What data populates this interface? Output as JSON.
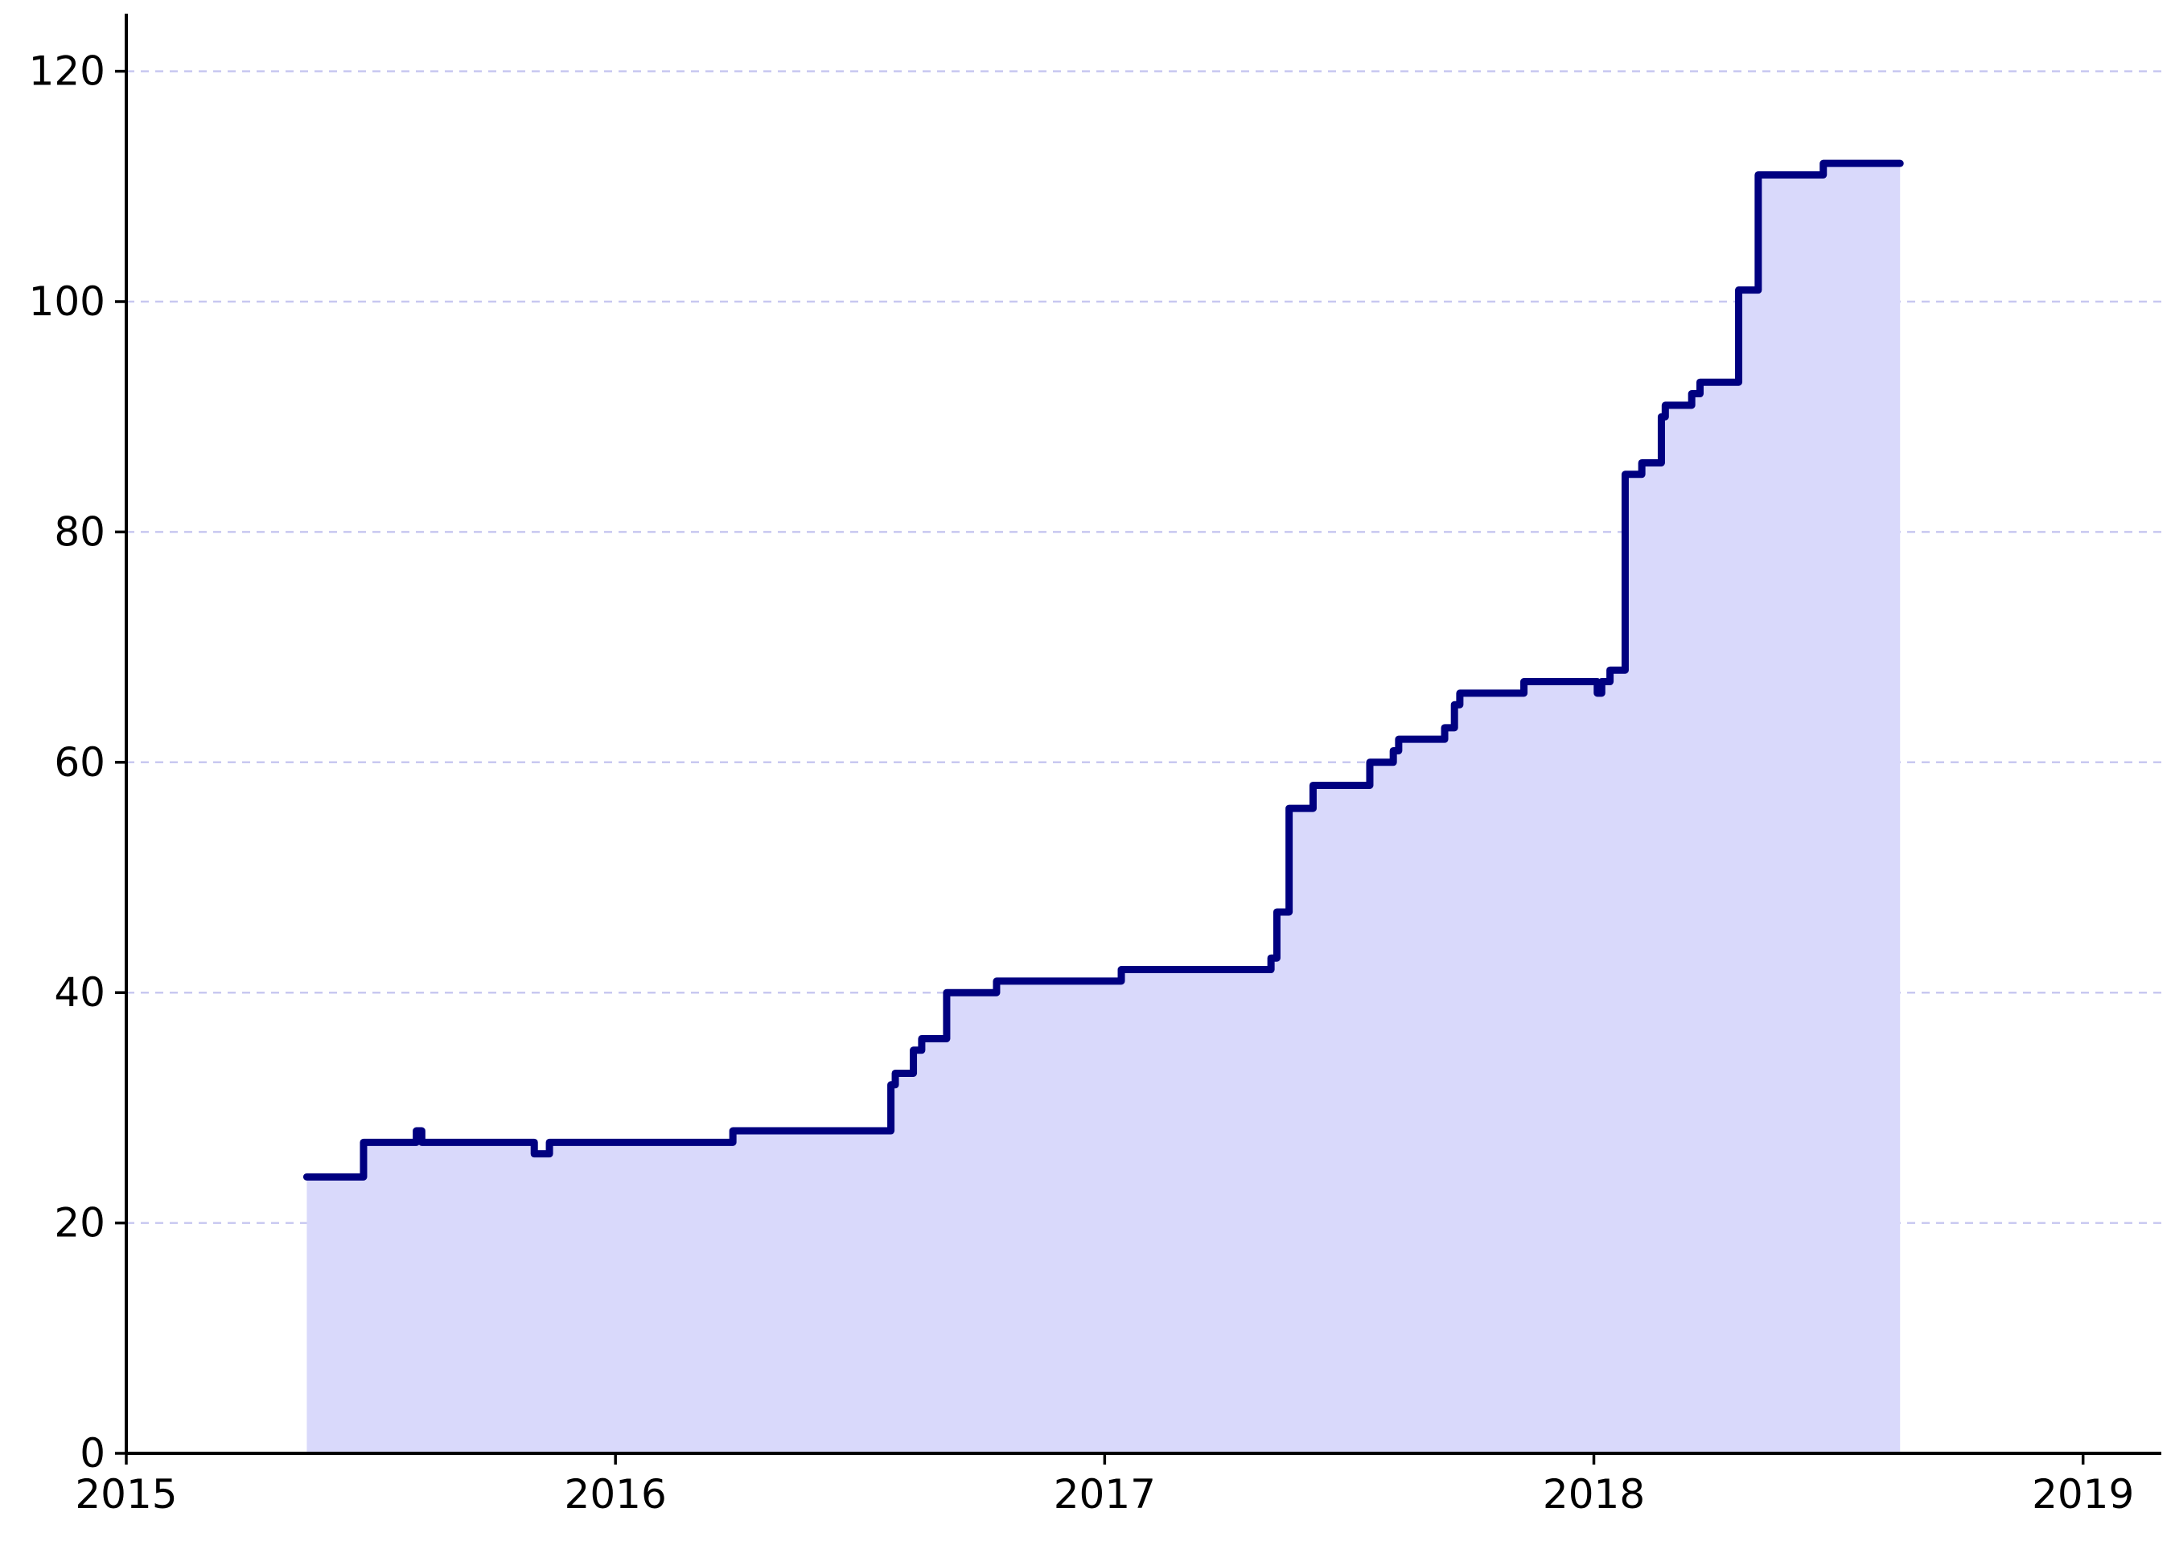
{
  "chart_data": {
    "type": "step-area",
    "x": [
      2015.369,
      2015.485,
      2015.593,
      2015.604,
      2015.834,
      2015.865,
      2016.24,
      2016.563,
      2016.572,
      2016.609,
      2016.626,
      2016.677,
      2016.779,
      2017.034,
      2017.34,
      2017.352,
      2017.377,
      2017.426,
      2017.542,
      2017.59,
      2017.601,
      2017.695,
      2017.715,
      2017.726,
      2017.857,
      2018.007,
      2018.016,
      2018.033,
      2018.064,
      2018.098,
      2018.138,
      2018.146,
      2018.2,
      2018.217,
      2018.296,
      2018.336,
      2018.469,
      2018.626
    ],
    "values": [
      24,
      27,
      28,
      27,
      26,
      27,
      28,
      32,
      33,
      35,
      36,
      40,
      41,
      42,
      43,
      47,
      56,
      58,
      60,
      61,
      62,
      63,
      65,
      66,
      67,
      66,
      67,
      68,
      85,
      86,
      90,
      91,
      92,
      93,
      101,
      111,
      112,
      112
    ],
    "color": "#000080",
    "fill_color": "#d9d9fb",
    "xlim": [
      2015,
      2019.16
    ],
    "xticks": [
      2015,
      2016,
      2017,
      2018,
      2019
    ],
    "ylim": [
      0,
      125
    ],
    "yticks": [
      0,
      20,
      40,
      60,
      80,
      100,
      120
    ],
    "grid": true,
    "grid_color": "#c8c8f0"
  }
}
